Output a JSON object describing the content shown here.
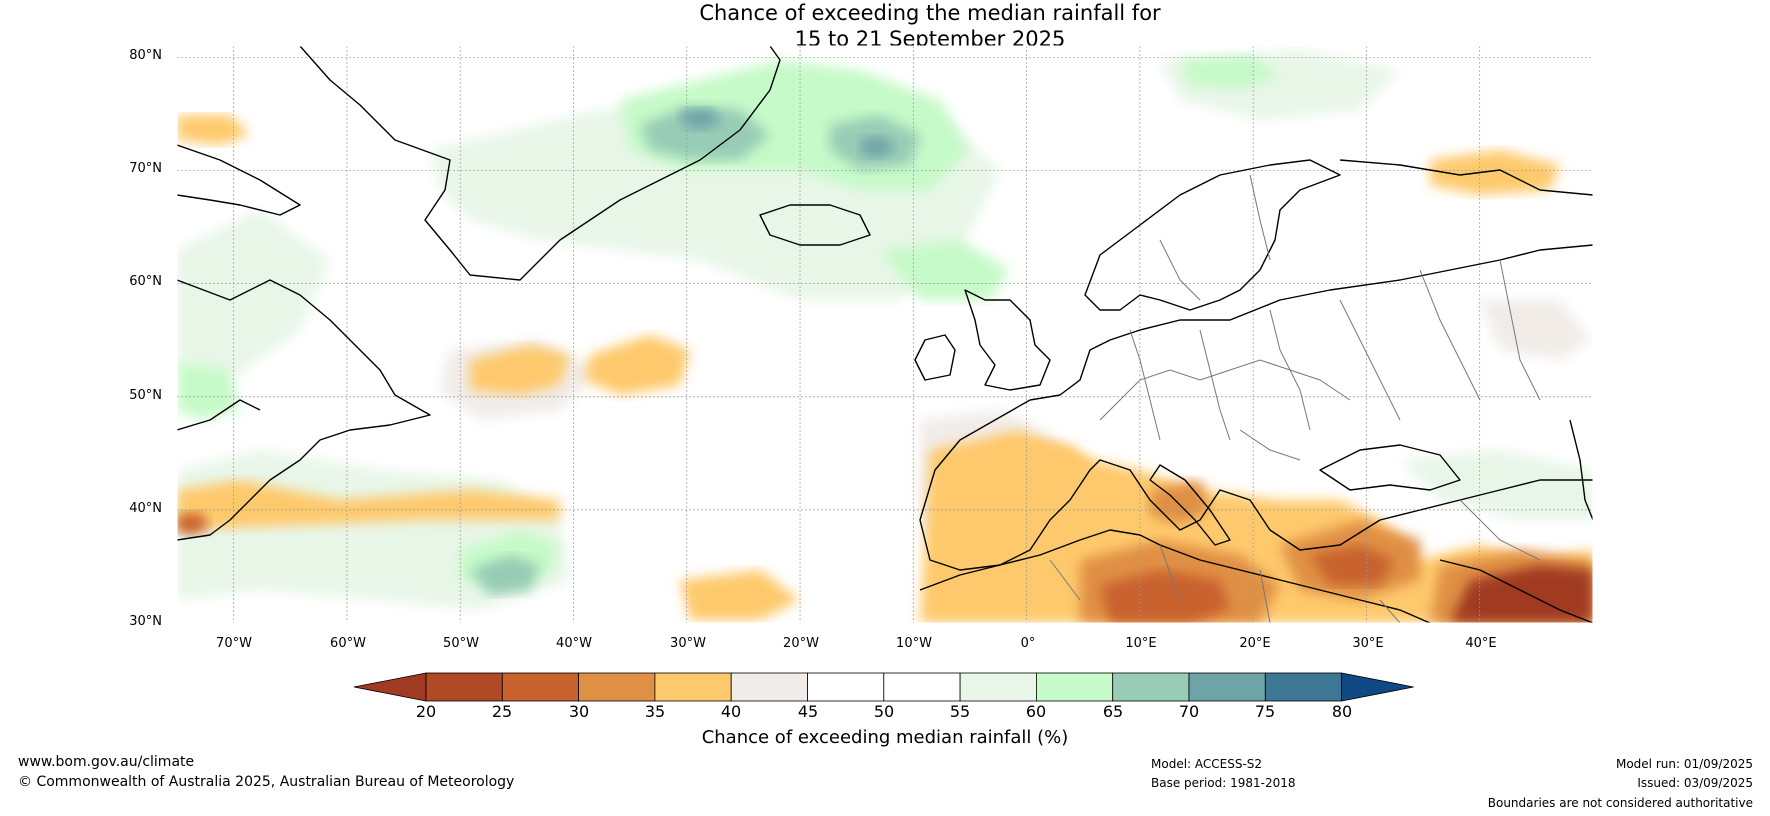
{
  "title": {
    "line1": "Chance of exceeding the median rainfall for",
    "line2": "15 to 21 September 2025"
  },
  "map": {
    "lat_labels": [
      "80°N",
      "70°N",
      "60°N",
      "50°N",
      "40°N",
      "30°N"
    ],
    "lat_values": [
      80,
      70,
      60,
      50,
      40,
      30
    ],
    "lon_labels": [
      "70°W",
      "60°W",
      "50°W",
      "40°W",
      "30°W",
      "20°W",
      "10°W",
      "0°",
      "10°E",
      "20°E",
      "30°E",
      "40°E"
    ],
    "lon_values": [
      -70,
      -60,
      -50,
      -40,
      -30,
      -20,
      -10,
      0,
      10,
      20,
      30,
      40
    ],
    "extent": {
      "lon_min": -75,
      "lon_max": 50,
      "lat_min": 30,
      "lat_max": 81
    },
    "coastline_color": "#000000",
    "border_color": "#777777",
    "gridline_color": "#999999"
  },
  "colorbar": {
    "ticks": [
      "20",
      "25",
      "30",
      "35",
      "40",
      "45",
      "50",
      "55",
      "60",
      "65",
      "70",
      "75",
      "80"
    ],
    "colors": [
      "#a03a22",
      "#b04a26",
      "#c8622e",
      "#e09044",
      "#fec96c",
      "#f1ece8",
      "#ffffff",
      "#ffffff",
      "#e8f6e8",
      "#c6fac8",
      "#98ccb6",
      "#6ea3a8",
      "#3e7696",
      "#0f4a84"
    ],
    "label": "Chance of exceeding median rainfall (%)"
  },
  "footer": {
    "website": "www.bom.gov.au/climate",
    "copyright": "© Commonwealth of Australia 2025, Australian Bureau of Meteorology",
    "model": "Model: ACCESS-S2",
    "base_period": "Base period: 1981-2018",
    "model_run": "Model run: 01/09/2025",
    "issued": "Issued: 03/09/2025",
    "disclaimer": "Boundaries are not considered authoritative"
  }
}
